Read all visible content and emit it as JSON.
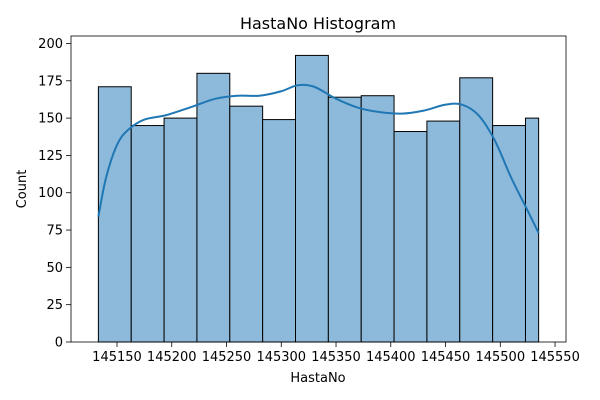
{
  "chart_data": {
    "type": "bar",
    "title": "HastaNo Histogram",
    "xlabel": "HastaNo",
    "ylabel": "Count",
    "bin_edges": [
      145133,
      145163,
      145193,
      145223,
      145253,
      145283,
      145313,
      145343,
      145373,
      145403,
      145433,
      145463,
      145493,
      145523,
      145535
    ],
    "bins": [
      {
        "x0": 145133,
        "x1": 145163,
        "value": 171
      },
      {
        "x0": 145163,
        "x1": 145193,
        "value": 145
      },
      {
        "x0": 145193,
        "x1": 145223,
        "value": 150
      },
      {
        "x0": 145223,
        "x1": 145253,
        "value": 180
      },
      {
        "x0": 145253,
        "x1": 145283,
        "value": 158
      },
      {
        "x0": 145283,
        "x1": 145313,
        "value": 149
      },
      {
        "x0": 145313,
        "x1": 145343,
        "value": 192
      },
      {
        "x0": 145343,
        "x1": 145373,
        "value": 164
      },
      {
        "x0": 145373,
        "x1": 145403,
        "value": 165
      },
      {
        "x0": 145403,
        "x1": 145433,
        "value": 141
      },
      {
        "x0": 145433,
        "x1": 145463,
        "value": 148
      },
      {
        "x0": 145463,
        "x1": 145493,
        "value": 177
      },
      {
        "x0": 145493,
        "x1": 145523,
        "value": 145
      },
      {
        "x0": 145523,
        "x1": 145535,
        "value": 150
      }
    ],
    "kde": {
      "x": [
        145133,
        145140,
        145150,
        145160,
        145175,
        145195,
        145220,
        145240,
        145260,
        145280,
        145300,
        145315,
        145330,
        145350,
        145370,
        145390,
        145410,
        145430,
        145450,
        145465,
        145480,
        145495,
        145510,
        145525,
        145535
      ],
      "y": [
        84,
        110,
        132,
        142,
        149,
        152,
        158,
        163,
        165,
        165,
        168,
        172,
        171,
        163,
        157,
        154,
        153,
        155,
        159,
        159,
        152,
        135,
        110,
        88,
        73
      ]
    },
    "xlim": [
      145108,
      145560
    ],
    "ylim": [
      0,
      205
    ],
    "xticks": [
      145150,
      145200,
      145250,
      145300,
      145350,
      145400,
      145450,
      145500,
      145550
    ],
    "yticks": [
      0,
      25,
      50,
      75,
      100,
      125,
      150,
      175,
      200
    ],
    "colors": {
      "bar_fill": "#8dbadb",
      "bar_edge": "#000000",
      "kde_line": "#1f77b4"
    }
  }
}
